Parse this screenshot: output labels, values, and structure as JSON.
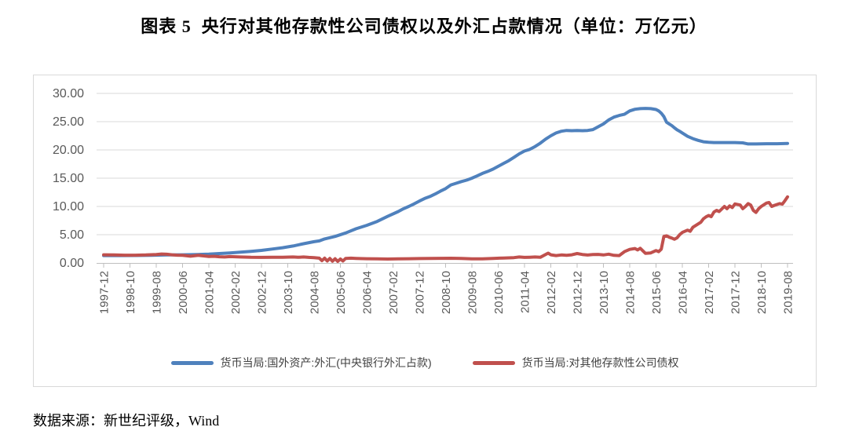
{
  "page": {
    "title": "图表 5  央行对其他存款性公司债权以及外汇占款情况（单位：万亿元）",
    "source": "数据来源：新世纪评级，Wind"
  },
  "chart_data": {
    "type": "line",
    "title": "央行对其他存款性公司债权以及外汇占款情况",
    "unit": "万亿元",
    "grid": "horizontal gridlines on",
    "legend_position": "bottom",
    "colors": {
      "blue_series": "#4F81BD",
      "red_series": "#C0504D",
      "gridline": "#d9d9d9",
      "axis": "#bfbfbf",
      "tick_text": "#595959"
    },
    "y_axis": {
      "min": 0,
      "max": 30,
      "step": 5,
      "tick_labels": [
        "0.00",
        "5.00",
        "10.00",
        "15.00",
        "20.00",
        "25.00",
        "30.00"
      ]
    },
    "x_axis": {
      "start": "1997-12",
      "end": "2019-08",
      "frequency": "monthly data, tick label every 10 months, labels rotated 90°",
      "x_unit": "months since 1997-12 (0 = 1997-12, 260 = 2019-08)",
      "tick_interval_months": 10,
      "tick_labels": [
        "1997-12",
        "1998-10",
        "1999-08",
        "2000-06",
        "2001-04",
        "2002-02",
        "2002-12",
        "2003-10",
        "2004-08",
        "2005-06",
        "2006-04",
        "2007-02",
        "2007-12",
        "2008-10",
        "2009-08",
        "2010-06",
        "2011-04",
        "2012-02",
        "2012-12",
        "2013-10",
        "2014-08",
        "2015-06",
        "2016-04",
        "2017-02",
        "2017-12",
        "2018-10",
        "2019-08"
      ]
    },
    "series": [
      {
        "name": "货币当局:国外资产:外汇(中央银行外汇占款)",
        "color": "#4F81BD",
        "points": [
          [
            0,
            1.3
          ],
          [
            6,
            1.3
          ],
          [
            12,
            1.32
          ],
          [
            18,
            1.36
          ],
          [
            24,
            1.41
          ],
          [
            30,
            1.45
          ],
          [
            36,
            1.5
          ],
          [
            40,
            1.56
          ],
          [
            44,
            1.66
          ],
          [
            48,
            1.78
          ],
          [
            52,
            1.92
          ],
          [
            56,
            2.06
          ],
          [
            60,
            2.22
          ],
          [
            64,
            2.46
          ],
          [
            68,
            2.7
          ],
          [
            72,
            3.0
          ],
          [
            76,
            3.4
          ],
          [
            80,
            3.76
          ],
          [
            82,
            3.9
          ],
          [
            84,
            4.25
          ],
          [
            88,
            4.7
          ],
          [
            92,
            5.3
          ],
          [
            96,
            6.05
          ],
          [
            100,
            6.65
          ],
          [
            104,
            7.35
          ],
          [
            108,
            8.25
          ],
          [
            112,
            9.1
          ],
          [
            114,
            9.6
          ],
          [
            116,
            10.0
          ],
          [
            118,
            10.45
          ],
          [
            120,
            10.95
          ],
          [
            122,
            11.4
          ],
          [
            124,
            11.75
          ],
          [
            126,
            12.2
          ],
          [
            128,
            12.7
          ],
          [
            130,
            13.15
          ],
          [
            132,
            13.8
          ],
          [
            134,
            14.1
          ],
          [
            136,
            14.4
          ],
          [
            138,
            14.65
          ],
          [
            140,
            15.0
          ],
          [
            142,
            15.4
          ],
          [
            144,
            15.85
          ],
          [
            146,
            16.2
          ],
          [
            148,
            16.6
          ],
          [
            150,
            17.1
          ],
          [
            152,
            17.6
          ],
          [
            154,
            18.1
          ],
          [
            156,
            18.7
          ],
          [
            158,
            19.3
          ],
          [
            160,
            19.8
          ],
          [
            162,
            20.1
          ],
          [
            164,
            20.6
          ],
          [
            166,
            21.2
          ],
          [
            168,
            21.9
          ],
          [
            170,
            22.5
          ],
          [
            172,
            23.0
          ],
          [
            174,
            23.3
          ],
          [
            176,
            23.45
          ],
          [
            178,
            23.4
          ],
          [
            180,
            23.45
          ],
          [
            182,
            23.4
          ],
          [
            184,
            23.45
          ],
          [
            186,
            23.6
          ],
          [
            188,
            24.1
          ],
          [
            190,
            24.6
          ],
          [
            192,
            25.3
          ],
          [
            194,
            25.8
          ],
          [
            196,
            26.1
          ],
          [
            198,
            26.3
          ],
          [
            200,
            26.9
          ],
          [
            202,
            27.2
          ],
          [
            204,
            27.3
          ],
          [
            206,
            27.35
          ],
          [
            208,
            27.3
          ],
          [
            210,
            27.15
          ],
          [
            211,
            26.9
          ],
          [
            212,
            26.5
          ],
          [
            213,
            25.9
          ],
          [
            214,
            24.9
          ],
          [
            215,
            24.6
          ],
          [
            216,
            24.3
          ],
          [
            217,
            23.9
          ],
          [
            218,
            23.55
          ],
          [
            219,
            23.3
          ],
          [
            220,
            23.0
          ],
          [
            221,
            22.7
          ],
          [
            222,
            22.4
          ],
          [
            224,
            22.0
          ],
          [
            226,
            21.7
          ],
          [
            228,
            21.45
          ],
          [
            230,
            21.35
          ],
          [
            232,
            21.3
          ],
          [
            236,
            21.3
          ],
          [
            240,
            21.3
          ],
          [
            243,
            21.25
          ],
          [
            245,
            21.05
          ],
          [
            248,
            21.05
          ],
          [
            252,
            21.1
          ],
          [
            256,
            21.1
          ],
          [
            260,
            21.15
          ]
        ]
      },
      {
        "name": "货币当局:对其他存款性公司债权",
        "color": "#C0504D",
        "points": [
          [
            0,
            1.44
          ],
          [
            4,
            1.42
          ],
          [
            8,
            1.38
          ],
          [
            12,
            1.37
          ],
          [
            16,
            1.42
          ],
          [
            20,
            1.5
          ],
          [
            22,
            1.58
          ],
          [
            24,
            1.54
          ],
          [
            26,
            1.45
          ],
          [
            28,
            1.38
          ],
          [
            30,
            1.35
          ],
          [
            33,
            1.2
          ],
          [
            36,
            1.35
          ],
          [
            38,
            1.25
          ],
          [
            40,
            1.15
          ],
          [
            42,
            1.18
          ],
          [
            44,
            1.1
          ],
          [
            46,
            1.05
          ],
          [
            48,
            1.13
          ],
          [
            52,
            1.05
          ],
          [
            56,
            1.0
          ],
          [
            60,
            0.99
          ],
          [
            64,
            1.02
          ],
          [
            68,
            1.0
          ],
          [
            72,
            1.06
          ],
          [
            74,
            1.0
          ],
          [
            76,
            1.05
          ],
          [
            78,
            0.98
          ],
          [
            80,
            0.95
          ],
          [
            82,
            0.85
          ],
          [
            83,
            0.4
          ],
          [
            84,
            0.85
          ],
          [
            85,
            0.35
          ],
          [
            86,
            0.8
          ],
          [
            87,
            0.3
          ],
          [
            88,
            0.75
          ],
          [
            89,
            0.28
          ],
          [
            90,
            0.7
          ],
          [
            91,
            0.35
          ],
          [
            92,
            0.8
          ],
          [
            94,
            0.85
          ],
          [
            96,
            0.8
          ],
          [
            100,
            0.75
          ],
          [
            104,
            0.72
          ],
          [
            108,
            0.7
          ],
          [
            112,
            0.72
          ],
          [
            116,
            0.75
          ],
          [
            120,
            0.78
          ],
          [
            124,
            0.8
          ],
          [
            128,
            0.82
          ],
          [
            132,
            0.84
          ],
          [
            136,
            0.8
          ],
          [
            140,
            0.74
          ],
          [
            144,
            0.72
          ],
          [
            148,
            0.8
          ],
          [
            152,
            0.88
          ],
          [
            156,
            0.95
          ],
          [
            158,
            1.05
          ],
          [
            160,
            0.98
          ],
          [
            162,
            1.02
          ],
          [
            164,
            1.06
          ],
          [
            166,
            1.0
          ],
          [
            169,
            1.74
          ],
          [
            170,
            1.45
          ],
          [
            172,
            1.3
          ],
          [
            174,
            1.42
          ],
          [
            176,
            1.35
          ],
          [
            178,
            1.45
          ],
          [
            180,
            1.67
          ],
          [
            182,
            1.5
          ],
          [
            184,
            1.4
          ],
          [
            186,
            1.48
          ],
          [
            188,
            1.52
          ],
          [
            190,
            1.42
          ],
          [
            192,
            1.55
          ],
          [
            194,
            1.35
          ],
          [
            196,
            1.3
          ],
          [
            198,
            2.0
          ],
          [
            200,
            2.4
          ],
          [
            202,
            2.55
          ],
          [
            203,
            2.3
          ],
          [
            204,
            2.6
          ],
          [
            206,
            1.7
          ],
          [
            208,
            1.78
          ],
          [
            210,
            2.2
          ],
          [
            211,
            2.0
          ],
          [
            212,
            2.45
          ],
          [
            213,
            4.7
          ],
          [
            214,
            4.8
          ],
          [
            215,
            4.55
          ],
          [
            216,
            4.4
          ],
          [
            217,
            4.2
          ],
          [
            218,
            4.45
          ],
          [
            219,
            5.0
          ],
          [
            220,
            5.4
          ],
          [
            222,
            5.8
          ],
          [
            223,
            5.6
          ],
          [
            224,
            6.3
          ],
          [
            226,
            6.9
          ],
          [
            227,
            7.2
          ],
          [
            228,
            7.8
          ],
          [
            229,
            8.15
          ],
          [
            230,
            8.4
          ],
          [
            231,
            8.2
          ],
          [
            232,
            9.0
          ],
          [
            233,
            9.3
          ],
          [
            234,
            9.1
          ],
          [
            236,
            10.0
          ],
          [
            237,
            9.6
          ],
          [
            238,
            10.1
          ],
          [
            239,
            9.8
          ],
          [
            240,
            10.45
          ],
          [
            242,
            10.25
          ],
          [
            243,
            9.6
          ],
          [
            244,
            10.0
          ],
          [
            245,
            10.5
          ],
          [
            246,
            10.25
          ],
          [
            247,
            9.3
          ],
          [
            248,
            8.95
          ],
          [
            249,
            9.6
          ],
          [
            250,
            10.0
          ],
          [
            251,
            10.3
          ],
          [
            252,
            10.6
          ],
          [
            253,
            10.7
          ],
          [
            254,
            10.0
          ],
          [
            255,
            10.2
          ],
          [
            256,
            10.35
          ],
          [
            257,
            10.5
          ],
          [
            258,
            10.4
          ],
          [
            259,
            11.0
          ],
          [
            260,
            11.7
          ]
        ]
      }
    ]
  }
}
